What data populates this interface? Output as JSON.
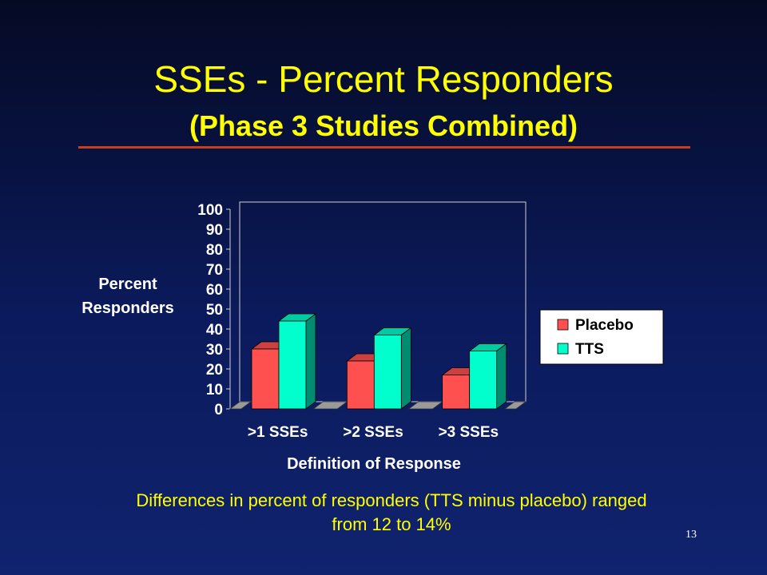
{
  "slide": {
    "title": "SSEs - Percent Responders",
    "subtitle": "(Phase 3 Studies Combined)",
    "footnote": "Differences in percent of responders (TTS minus placebo) ranged from 12 to 14%",
    "page_number": "13",
    "colors": {
      "title": "#ffff00",
      "rule": "#c8401a",
      "background": "#0b1a5c"
    }
  },
  "chart_data": {
    "type": "bar",
    "title": "",
    "ylabel": "Percent Responders",
    "xlabel": "Definition of Response",
    "categories": [
      ">1 SSEs",
      ">2 SSEs",
      ">3 SSEs"
    ],
    "yticks": [
      "0",
      "10",
      "20",
      "30",
      "40",
      "50",
      "60",
      "70",
      "80",
      "90",
      "100"
    ],
    "ylim": [
      0,
      100
    ],
    "series": [
      {
        "name": "Placebo",
        "values": [
          30,
          24,
          17
        ],
        "color": "#ff5050"
      },
      {
        "name": "TTS",
        "values": [
          44,
          37,
          29
        ],
        "color": "#00ffcc"
      }
    ],
    "legend_position": "right",
    "grid": false
  }
}
